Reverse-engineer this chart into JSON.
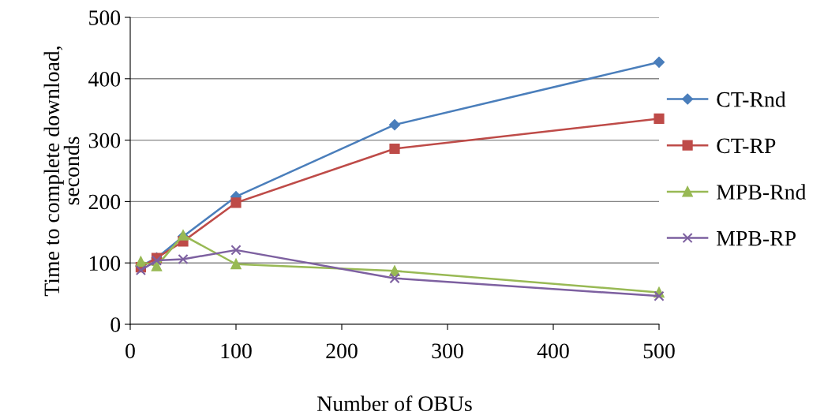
{
  "chart_data": {
    "type": "line",
    "xlabel": "Number of OBUs",
    "ylabel": "Time to complete download,\nseconds",
    "x": [
      10,
      25,
      50,
      100,
      250,
      500
    ],
    "series": [
      {
        "name": "CT-Rnd",
        "color": "#4a7ebb",
        "marker": "diamond",
        "values": [
          95,
          108,
          143,
          208,
          325,
          427
        ]
      },
      {
        "name": "CT-RP",
        "color": "#be4b48",
        "marker": "square",
        "values": [
          93,
          108,
          135,
          198,
          286,
          335
        ]
      },
      {
        "name": "MPB-Rnd",
        "color": "#98b954",
        "marker": "triangle",
        "values": [
          102,
          95,
          145,
          98,
          87,
          52
        ]
      },
      {
        "name": "MPB-RP",
        "color": "#7d60a0",
        "marker": "cross",
        "values": [
          88,
          104,
          106,
          121,
          75,
          46
        ]
      }
    ],
    "xlim": [
      0,
      500
    ],
    "xticks": [
      0,
      100,
      200,
      300,
      400,
      500
    ],
    "ylim": [
      0,
      500
    ],
    "yticks": [
      0,
      100,
      200,
      300,
      400,
      500
    ],
    "grid": "y",
    "legend": "right"
  }
}
